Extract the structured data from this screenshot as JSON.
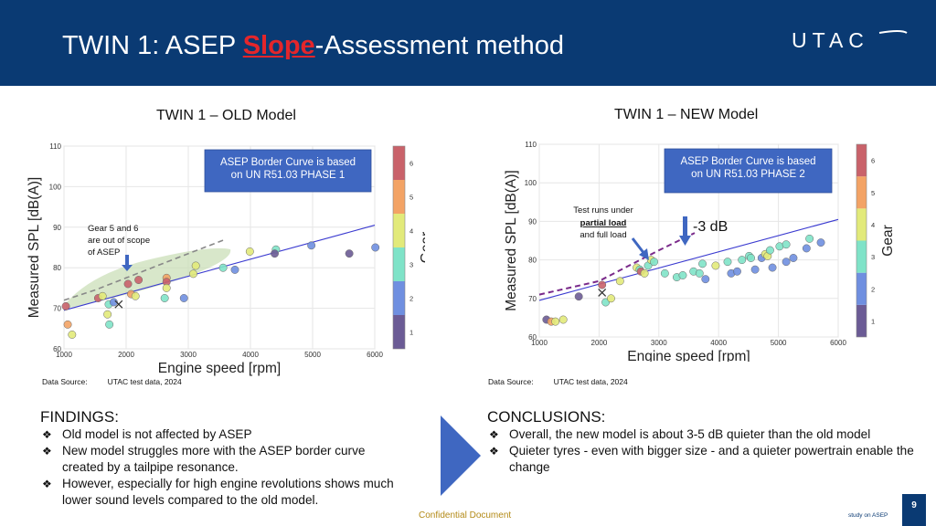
{
  "header": {
    "title_pre": "TWIN 1: ASEP ",
    "title_highlight": "Slope",
    "title_post": "-Assessment method",
    "logo_text": "UTAC"
  },
  "colors": {
    "header_bg": "#0a3a73",
    "highlight": "#e4262b",
    "border_line": "#3a3ad0",
    "asep_curve": "#7a2a8a",
    "gear_1": "#6b5b95",
    "gear_2": "#6f8fe0",
    "gear_3": "#7fe3c8",
    "gear_4": "#e2ea7a",
    "gear_5": "#f3a365",
    "gear_6": "#c9626a"
  },
  "left_panel": {
    "title": "TWIN 1 – OLD Model",
    "annotation_box": [
      "ASEP Border Curve is based",
      "on UN R51.03 PHASE 1"
    ],
    "note": [
      "Gear 5 and 6",
      "are out of scope",
      "of ASEP"
    ],
    "source_label": "Data Source:",
    "source_value": "UTAC test data, 2024"
  },
  "right_panel": {
    "title": "TWIN 1 – NEW Model",
    "annotation_box": [
      "ASEP Border Curve is based",
      "on UN R51.03 PHASE 2"
    ],
    "note": [
      "Test runs under",
      "partial load",
      "and full load"
    ],
    "delta_label": "-3 dB",
    "source_label": "Data Source:",
    "source_value": "UTAC test data, 2024"
  },
  "chart_data": [
    {
      "type": "scatter",
      "xlabel": "Engine speed [rpm]",
      "ylabel": "Measured SPL [dB(A)]",
      "colorbar_label": "Gear",
      "xlim": [
        1000,
        6000
      ],
      "ylim": [
        60,
        110
      ],
      "xticks": [
        1000,
        2000,
        3000,
        4000,
        5000,
        6000
      ],
      "yticks": [
        60,
        70,
        80,
        90,
        100,
        110
      ],
      "colorbar_ticks": [
        1,
        2,
        3,
        4,
        5,
        6
      ],
      "grid": true,
      "points": [
        {
          "x": 1030,
          "y": 70.5,
          "gear": 6
        },
        {
          "x": 1060,
          "y": 66,
          "gear": 5
        },
        {
          "x": 1130,
          "y": 63.5,
          "gear": 4
        },
        {
          "x": 1550,
          "y": 72.5,
          "gear": 6
        },
        {
          "x": 1620,
          "y": 73,
          "gear": 4
        },
        {
          "x": 1720,
          "y": 71,
          "gear": 3
        },
        {
          "x": 1700,
          "y": 68.5,
          "gear": 4
        },
        {
          "x": 1730,
          "y": 66,
          "gear": 3
        },
        {
          "x": 1800,
          "y": 71.5,
          "gear": 2
        },
        {
          "x": 2030,
          "y": 76,
          "gear": 6
        },
        {
          "x": 2080,
          "y": 73.5,
          "gear": 5
        },
        {
          "x": 2150,
          "y": 73,
          "gear": 4
        },
        {
          "x": 2200,
          "y": 77,
          "gear": 6
        },
        {
          "x": 2650,
          "y": 77.5,
          "gear": 5
        },
        {
          "x": 2650,
          "y": 76.5,
          "gear": 6
        },
        {
          "x": 2650,
          "y": 75,
          "gear": 4
        },
        {
          "x": 2620,
          "y": 72.5,
          "gear": 3
        },
        {
          "x": 2930,
          "y": 72.5,
          "gear": 2
        },
        {
          "x": 3080,
          "y": 78.5,
          "gear": 4
        },
        {
          "x": 3120,
          "y": 80.5,
          "gear": 4
        },
        {
          "x": 3560,
          "y": 80,
          "gear": 3
        },
        {
          "x": 3750,
          "y": 79.5,
          "gear": 2
        },
        {
          "x": 3990,
          "y": 84,
          "gear": 4
        },
        {
          "x": 4410,
          "y": 84.5,
          "gear": 3
        },
        {
          "x": 4390,
          "y": 83.5,
          "gear": 1
        },
        {
          "x": 4980,
          "y": 85.5,
          "gear": 2
        },
        {
          "x": 5590,
          "y": 83.5,
          "gear": 1
        },
        {
          "x": 6010,
          "y": 85,
          "gear": 2
        }
      ],
      "border_line": {
        "x": [
          1000,
          6000
        ],
        "y": [
          69.5,
          90.5
        ]
      },
      "asep_curve": {
        "x": [
          1000,
          1500,
          2000,
          2500,
          3000,
          3600
        ],
        "y": [
          72,
          74.5,
          77.5,
          80.5,
          83.5,
          87
        ]
      },
      "cross_marker": {
        "x": 1880,
        "y": 71
      }
    },
    {
      "type": "scatter",
      "xlabel": "Engine speed [rpm]",
      "ylabel": "Measured SPL [dB(A)]",
      "colorbar_label": "Gear",
      "xlim": [
        1000,
        6000
      ],
      "ylim": [
        60,
        110
      ],
      "xticks": [
        1000,
        2000,
        3000,
        4000,
        5000,
        6000
      ],
      "yticks": [
        60,
        70,
        80,
        90,
        100,
        110
      ],
      "colorbar_ticks": [
        1,
        2,
        3,
        4,
        5,
        6
      ],
      "grid": true,
      "points": [
        {
          "x": 1120,
          "y": 64.5,
          "gear": 1
        },
        {
          "x": 1200,
          "y": 64,
          "gear": 5
        },
        {
          "x": 1270,
          "y": 64,
          "gear": 4
        },
        {
          "x": 1400,
          "y": 64.5,
          "gear": 4
        },
        {
          "x": 1660,
          "y": 70.5,
          "gear": 1
        },
        {
          "x": 2050,
          "y": 73.5,
          "gear": 6
        },
        {
          "x": 2110,
          "y": 69,
          "gear": 3
        },
        {
          "x": 2200,
          "y": 70,
          "gear": 4
        },
        {
          "x": 2350,
          "y": 74.5,
          "gear": 4
        },
        {
          "x": 2630,
          "y": 78,
          "gear": 4
        },
        {
          "x": 2680,
          "y": 77.5,
          "gear": 3
        },
        {
          "x": 2700,
          "y": 77,
          "gear": 6
        },
        {
          "x": 2760,
          "y": 76.5,
          "gear": 4
        },
        {
          "x": 2820,
          "y": 78.5,
          "gear": 3
        },
        {
          "x": 2870,
          "y": 80,
          "gear": 4
        },
        {
          "x": 2920,
          "y": 79.5,
          "gear": 3
        },
        {
          "x": 3100,
          "y": 76.5,
          "gear": 3
        },
        {
          "x": 3300,
          "y": 75.5,
          "gear": 3
        },
        {
          "x": 3400,
          "y": 76,
          "gear": 3
        },
        {
          "x": 3580,
          "y": 77,
          "gear": 3
        },
        {
          "x": 3680,
          "y": 76.5,
          "gear": 3
        },
        {
          "x": 3730,
          "y": 79,
          "gear": 3
        },
        {
          "x": 3780,
          "y": 75,
          "gear": 2
        },
        {
          "x": 3950,
          "y": 78.5,
          "gear": 4
        },
        {
          "x": 4150,
          "y": 79.5,
          "gear": 3
        },
        {
          "x": 4210,
          "y": 76.5,
          "gear": 2
        },
        {
          "x": 4310,
          "y": 77,
          "gear": 2
        },
        {
          "x": 4390,
          "y": 80,
          "gear": 3
        },
        {
          "x": 4510,
          "y": 81,
          "gear": 3
        },
        {
          "x": 4540,
          "y": 80.5,
          "gear": 3
        },
        {
          "x": 4610,
          "y": 77.5,
          "gear": 2
        },
        {
          "x": 4720,
          "y": 80.5,
          "gear": 2
        },
        {
          "x": 4780,
          "y": 81.5,
          "gear": 4
        },
        {
          "x": 4820,
          "y": 81,
          "gear": 4
        },
        {
          "x": 4860,
          "y": 82.5,
          "gear": 3
        },
        {
          "x": 4900,
          "y": 78,
          "gear": 2
        },
        {
          "x": 5020,
          "y": 83.5,
          "gear": 3
        },
        {
          "x": 5130,
          "y": 84,
          "gear": 3
        },
        {
          "x": 5130,
          "y": 79.5,
          "gear": 2
        },
        {
          "x": 5250,
          "y": 80.5,
          "gear": 2
        },
        {
          "x": 5470,
          "y": 83,
          "gear": 2
        },
        {
          "x": 5520,
          "y": 85.5,
          "gear": 3
        },
        {
          "x": 5710,
          "y": 84.5,
          "gear": 2
        }
      ],
      "border_line": {
        "x": [
          1000,
          6000
        ],
        "y": [
          69.5,
          90.5
        ]
      },
      "asep_curve": {
        "x": [
          1000,
          2000,
          2500,
          3000,
          3600
        ],
        "y": [
          71,
          74.5,
          78.5,
          82.5,
          87
        ]
      },
      "cross_marker": {
        "x": 2050,
        "y": 71.5
      }
    }
  ],
  "findings": {
    "heading": "FINDINGS:",
    "items": [
      "Old model is not affected by ASEP",
      "New model struggles more with the ASEP border curve created by a tailpipe resonance.",
      "However, especially for high engine revolutions shows much lower sound levels compared to the old model."
    ]
  },
  "conclusions": {
    "heading": "CONCLUSIONS:",
    "items": [
      "Overall, the new model is about 3-5 dB quieter than the old model",
      "Quieter tyres - even with bigger size - and a quieter powertrain enable the change"
    ]
  },
  "footer": {
    "confidential": "Confidential Document",
    "study": "study on ASEP",
    "page": "9"
  }
}
